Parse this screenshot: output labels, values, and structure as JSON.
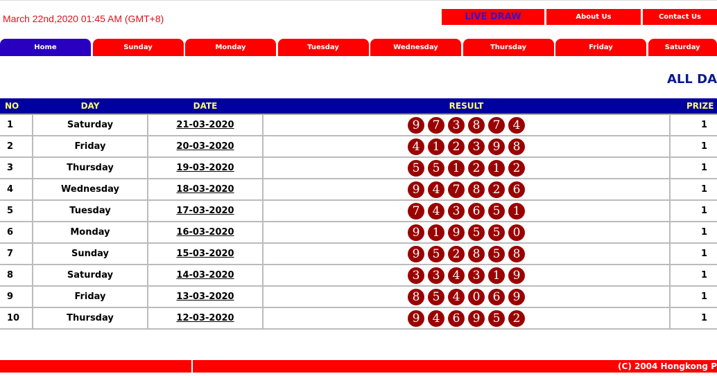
{
  "header": {
    "datetime": "March 22nd,2020 01:45 AM (GMT+8)",
    "buttons": [
      "LIVE DRAW",
      "About Us",
      "Contact Us"
    ]
  },
  "tabs": [
    "Home",
    "Sunday",
    "Monday",
    "Tuesday",
    "Wednesday",
    "Thursday",
    "Friday",
    "Saturday"
  ],
  "heading": "ALL DA",
  "table": {
    "columns": [
      "NO",
      "DAY",
      "DATE",
      "RESULT",
      "PRIZE"
    ],
    "rows": [
      {
        "no": "1",
        "day": "Saturday",
        "date": "21-03-2020",
        "result": [
          "9",
          "7",
          "3",
          "8",
          "7",
          "4"
        ],
        "prize": "1"
      },
      {
        "no": "2",
        "day": "Friday",
        "date": "20-03-2020",
        "result": [
          "4",
          "1",
          "2",
          "3",
          "9",
          "8"
        ],
        "prize": "1"
      },
      {
        "no": "3",
        "day": "Thursday",
        "date": "19-03-2020",
        "result": [
          "5",
          "5",
          "1",
          "2",
          "1",
          "2"
        ],
        "prize": "1"
      },
      {
        "no": "4",
        "day": "Wednesday",
        "date": "18-03-2020",
        "result": [
          "9",
          "4",
          "7",
          "8",
          "2",
          "6"
        ],
        "prize": "1"
      },
      {
        "no": "5",
        "day": "Tuesday",
        "date": "17-03-2020",
        "result": [
          "7",
          "4",
          "3",
          "6",
          "5",
          "1"
        ],
        "prize": "1"
      },
      {
        "no": "6",
        "day": "Monday",
        "date": "16-03-2020",
        "result": [
          "9",
          "1",
          "9",
          "5",
          "5",
          "0"
        ],
        "prize": "1"
      },
      {
        "no": "7",
        "day": "Sunday",
        "date": "15-03-2020",
        "result": [
          "9",
          "5",
          "2",
          "8",
          "5",
          "8"
        ],
        "prize": "1"
      },
      {
        "no": "8",
        "day": "Saturday",
        "date": "14-03-2020",
        "result": [
          "3",
          "3",
          "4",
          "3",
          "1",
          "9"
        ],
        "prize": "1"
      },
      {
        "no": "9",
        "day": "Friday",
        "date": "13-03-2020",
        "result": [
          "8",
          "5",
          "4",
          "0",
          "6",
          "9"
        ],
        "prize": "1"
      },
      {
        "no": "10",
        "day": "Thursday",
        "date": "12-03-2020",
        "result": [
          "9",
          "4",
          "6",
          "9",
          "5",
          "2"
        ],
        "prize": "1"
      }
    ]
  },
  "footer": {
    "copyright": "(C) 2004 Hongkong P"
  },
  "colors": {
    "red": "#ff0000",
    "blue": "#0000a0",
    "ball": "#9a0000",
    "header_text": "#ffff66"
  }
}
